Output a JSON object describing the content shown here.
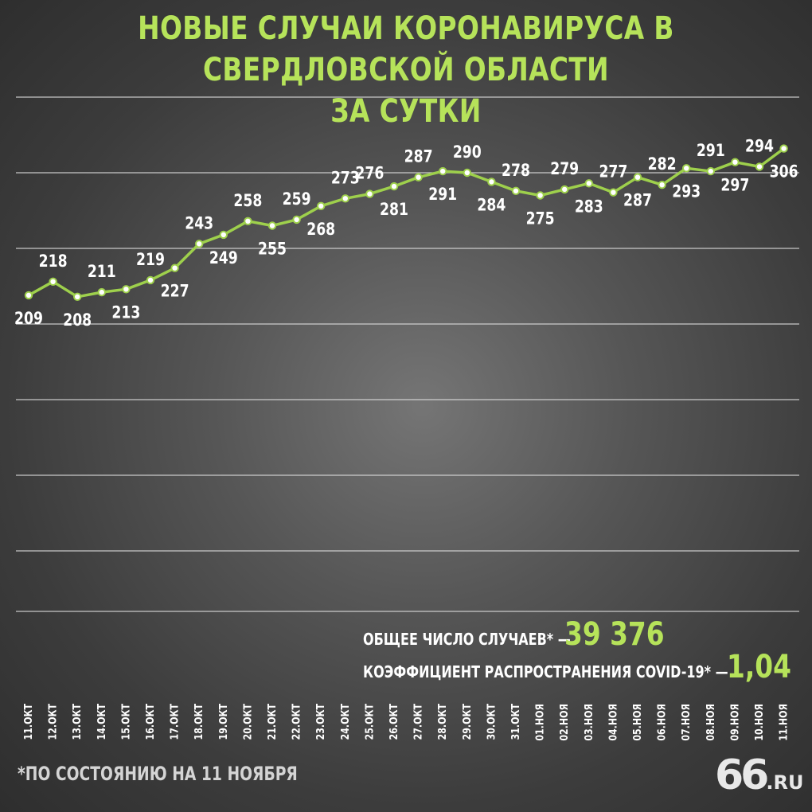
{
  "title_line1": "НОВЫЕ СЛУЧАИ КОРОНАВИРУСА В СВЕРДЛОВСКОЙ ОБЛАСТИ",
  "title_line2": "ЗА СУТКИ",
  "colors": {
    "accent": "#b6e35a",
    "line": "#9ed04c",
    "grid": "#e0e0e0"
  },
  "stats": {
    "total_label": "ОБЩЕЕ ЧИСЛО СЛУЧАЕВ* —",
    "total_value": "39 376",
    "rate_label": "КОЭФФИЦИЕНТ РАСПРОСТРАНЕНИЯ COVID-19* —",
    "rate_value": "1,04"
  },
  "footnote": "*ПО СОСТОЯНИЮ НА 11 НОЯБРЯ",
  "logo": {
    "number": "66",
    "domain": ".RU"
  },
  "chart_data": {
    "type": "line",
    "title": "НОВЫЕ СЛУЧАИ КОРОНАВИРУСА В СВЕРДЛОВСКОЙ ОБЛАСТИ ЗА СУТКИ",
    "categories": [
      "11.ОКТ",
      "12.ОКТ",
      "13.ОКТ",
      "14.ОКТ",
      "15.ОКТ",
      "16.ОКТ",
      "17.ОКТ",
      "18.ОКТ",
      "19.ОКТ",
      "20.ОКТ",
      "21.ОКТ",
      "22.ОКТ",
      "23.ОКТ",
      "24.ОКТ",
      "25.ОКТ",
      "26.ОКТ",
      "27.ОКТ",
      "28.ОКТ",
      "29.ОКТ",
      "30.ОКТ",
      "31.ОКТ",
      "01.НОЯ",
      "02.НОЯ",
      "03.НОЯ",
      "04.НОЯ",
      "05.НОЯ",
      "06.НОЯ",
      "07.НОЯ",
      "08.НОЯ",
      "09.НОЯ",
      "10.НОЯ",
      "11.НОЯ"
    ],
    "values": [
      209,
      218,
      208,
      211,
      213,
      219,
      227,
      243,
      249,
      258,
      255,
      259,
      268,
      273,
      276,
      281,
      287,
      291,
      290,
      284,
      278,
      275,
      279,
      283,
      277,
      287,
      282,
      293,
      291,
      297,
      294,
      306
    ],
    "label_position": [
      "below",
      "above",
      "below",
      "above",
      "below",
      "above",
      "below",
      "above",
      "below",
      "above",
      "below",
      "above",
      "below",
      "above",
      "above",
      "below",
      "above",
      "below",
      "above",
      "below",
      "above",
      "below",
      "above",
      "below",
      "above",
      "below",
      "above",
      "below",
      "above",
      "below",
      "above",
      "below"
    ],
    "y_range": [
      0,
      340
    ],
    "grid": true
  }
}
